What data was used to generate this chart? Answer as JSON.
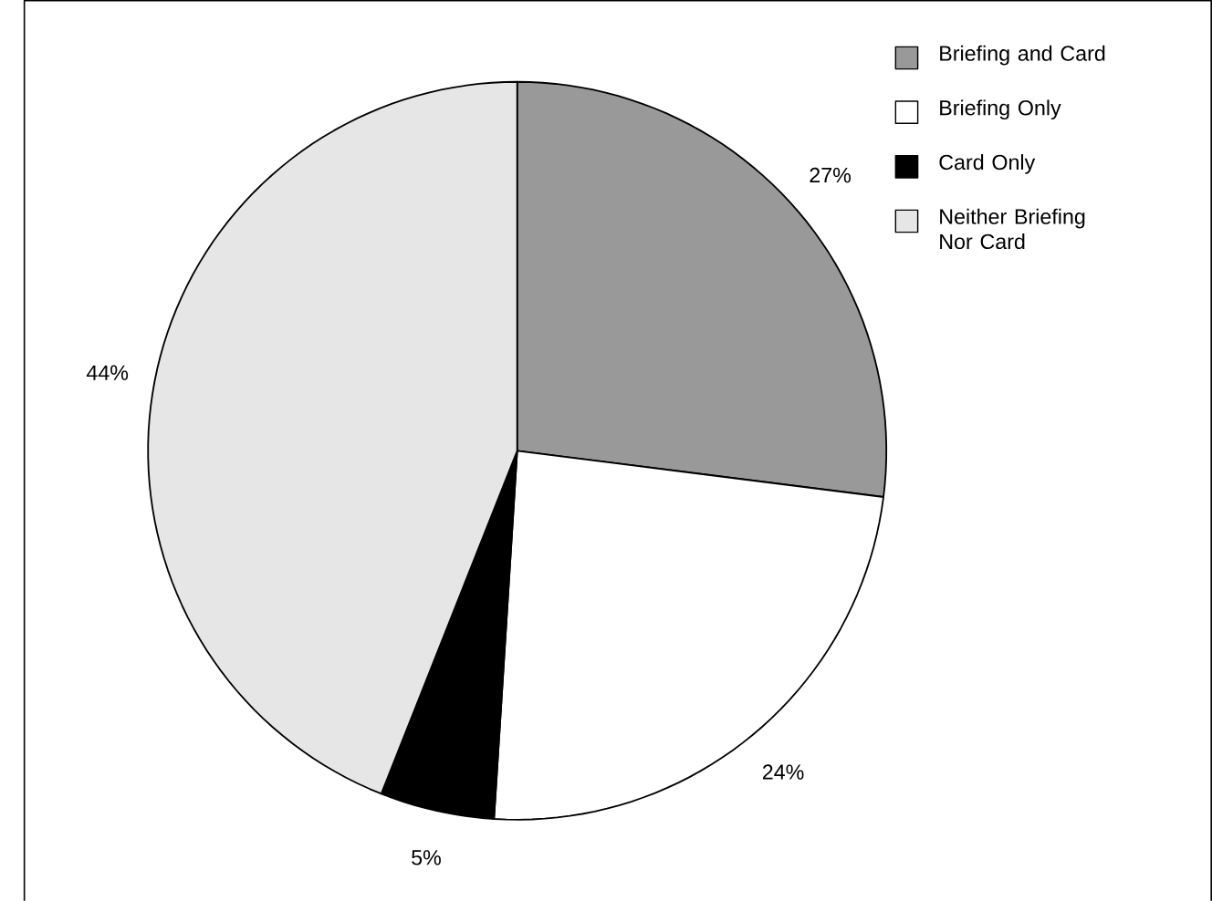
{
  "chart_data": {
    "type": "pie",
    "categories": [
      "Briefing and Card",
      "Briefing Only",
      "Card Only",
      "Neither Briefing Nor Card"
    ],
    "values": [
      27,
      24,
      5,
      44
    ],
    "colors": [
      "#999999",
      "#ffffff",
      "#000000",
      "#e6e6e6"
    ],
    "value_labels": [
      "27%",
      "24%",
      "5%",
      "44%"
    ],
    "legend": "top right"
  }
}
